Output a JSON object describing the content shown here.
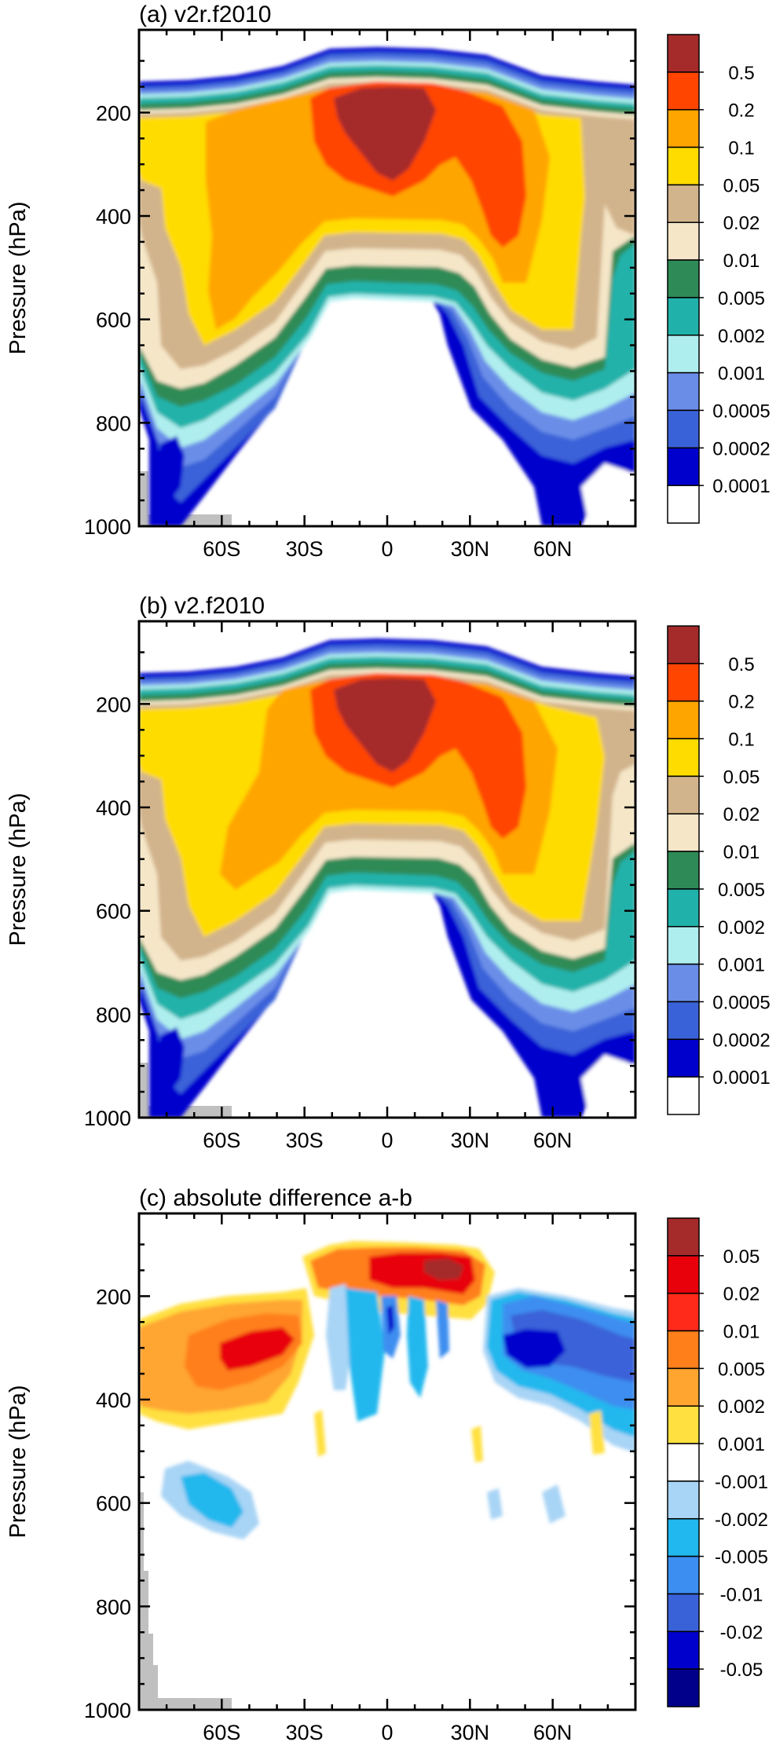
{
  "chart_data": [
    {
      "type": "contour",
      "title": "(a) v2r.f2010",
      "ylabel": "Pressure (hPa)",
      "xlabel": "",
      "yticks": [
        200,
        400,
        600,
        800,
        1000
      ],
      "ylim": [
        1000,
        40
      ],
      "xticks": [
        {
          "value": -60,
          "label": "60S"
        },
        {
          "value": -30,
          "label": "30S"
        },
        {
          "value": 0,
          "label": "0"
        },
        {
          "value": 30,
          "label": "30N"
        },
        {
          "value": 60,
          "label": "60N"
        }
      ],
      "xlim": [
        -90,
        90
      ],
      "levels": [
        "0.5",
        "0.2",
        "0.1",
        "0.05",
        "0.02",
        "0.01",
        "0.005",
        "0.002",
        "0.001",
        "0.0005",
        "0.0002",
        "0.0001"
      ],
      "colors": [
        "#a52a2a",
        "#ff4500",
        "#ffa500",
        "#ffdc00",
        "#d2b48c",
        "#f5e6c8",
        "#2e8b57",
        "#20b2aa",
        "#afeeee",
        "#6a8ee8",
        "#3a62d8",
        "#0000cd",
        "#ffffff"
      ],
      "missing_color": "#c0c0c0"
    },
    {
      "type": "contour",
      "title": "(b) v2.f2010",
      "ylabel": "Pressure (hPa)",
      "xlabel": "",
      "yticks": [
        200,
        400,
        600,
        800,
        1000
      ],
      "ylim": [
        1000,
        40
      ],
      "xticks": [
        {
          "value": -60,
          "label": "60S"
        },
        {
          "value": -30,
          "label": "30S"
        },
        {
          "value": 0,
          "label": "0"
        },
        {
          "value": 30,
          "label": "30N"
        },
        {
          "value": 60,
          "label": "60N"
        }
      ],
      "xlim": [
        -90,
        90
      ],
      "levels": [
        "0.5",
        "0.2",
        "0.1",
        "0.05",
        "0.02",
        "0.01",
        "0.005",
        "0.002",
        "0.001",
        "0.0005",
        "0.0002",
        "0.0001"
      ],
      "colors": [
        "#a52a2a",
        "#ff4500",
        "#ffa500",
        "#ffdc00",
        "#d2b48c",
        "#f5e6c8",
        "#2e8b57",
        "#20b2aa",
        "#afeeee",
        "#6a8ee8",
        "#3a62d8",
        "#0000cd",
        "#ffffff"
      ],
      "missing_color": "#c0c0c0"
    },
    {
      "type": "contour",
      "title": "(c) absolute difference a-b",
      "ylabel": "Pressure (hPa)",
      "xlabel": "",
      "yticks": [
        200,
        400,
        600,
        800,
        1000
      ],
      "ylim": [
        1000,
        40
      ],
      "xticks": [
        {
          "value": -60,
          "label": "60S"
        },
        {
          "value": -30,
          "label": "30S"
        },
        {
          "value": 0,
          "label": "0"
        },
        {
          "value": 30,
          "label": "30N"
        },
        {
          "value": 60,
          "label": "60N"
        }
      ],
      "xlim": [
        -90,
        90
      ],
      "levels": [
        "0.05",
        "0.02",
        "0.01",
        "0.005",
        "0.002",
        "0.001",
        "-0.001",
        "-0.002",
        "-0.005",
        "-0.01",
        "-0.02",
        "-0.05"
      ],
      "colors": [
        "#a52a2a",
        "#e8000b",
        "#ff2a1a",
        "#ff7f1a",
        "#ffa530",
        "#ffe040",
        "#ffffff",
        "#a8d4f5",
        "#20b8ee",
        "#3c8ef0",
        "#3a62d8",
        "#0000cd",
        "#00008b"
      ],
      "missing_color": "#c0c0c0"
    }
  ]
}
